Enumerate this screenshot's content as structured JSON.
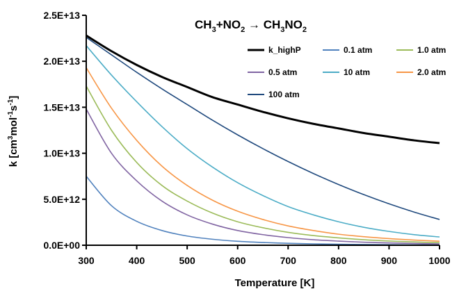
{
  "chart_data": {
    "type": "line",
    "title": "CH₃+NO₂ → CH₃NO₂",
    "title_parts": {
      "r1_base": "CH",
      "r1_sub": "3",
      "plus": "+NO",
      "r2_sub": "2",
      "arrow": " → ",
      "p_base": "CH",
      "p_sub1": "3",
      "p_mid": "NO",
      "p_sub2": "2"
    },
    "xlabel": "Temperature [K]",
    "ylabel": "k [cm³mol⁻¹s⁻¹]",
    "ylabel_parts": {
      "a": "k [cm",
      "sup1": "3",
      "b": "mol",
      "sup2": "-1",
      "c": "s",
      "sup3": "-1",
      "d": "]"
    },
    "xlim": [
      300,
      1000
    ],
    "ylim": [
      0,
      25000000000000.0
    ],
    "x_ticks": [
      300,
      400,
      500,
      600,
      700,
      800,
      900,
      1000
    ],
    "x_tick_labels": [
      "300",
      "400",
      "500",
      "600",
      "700",
      "800",
      "900",
      "1000"
    ],
    "y_ticks": [
      0,
      5000000000000.0,
      10000000000000.0,
      15000000000000.0,
      20000000000000.0,
      25000000000000.0
    ],
    "y_tick_labels": [
      "0.0E+00",
      "5.0E+12",
      "1.0E+13",
      "1.5E+13",
      "2.0E+13",
      "2.5E+13"
    ],
    "grid": false,
    "legend_position": "top-right",
    "x": [
      300,
      350,
      400,
      450,
      500,
      550,
      600,
      650,
      700,
      750,
      800,
      850,
      900,
      950,
      1000
    ],
    "series": [
      {
        "name": "k_highP",
        "color": "#000000",
        "width": 3,
        "values": [
          22800000000000.0,
          21100000000000.0,
          19600000000000.0,
          18300000000000.0,
          17200000000000.0,
          16100000000000.0,
          15300000000000.0,
          14500000000000.0,
          13800000000000.0,
          13200000000000.0,
          12700000000000.0,
          12200000000000.0,
          11800000000000.0,
          11400000000000.0,
          11100000000000.0
        ]
      },
      {
        "name": "0.1 atm",
        "color": "#4f81bd",
        "width": 1.6,
        "values": [
          7500000000000.0,
          4300000000000.0,
          2600000000000.0,
          1600000000000.0,
          1000000000000.0,
          650000000000.0,
          430000000000.0,
          300000000000.0,
          210000000000.0,
          150000000000.0,
          110000000000.0,
          80000000000.0,
          60000000000.0,
          45000000000.0,
          35000000000.0
        ]
      },
      {
        "name": "1.0 atm",
        "color": "#9bbb59",
        "width": 1.6,
        "values": [
          17300000000000.0,
          12500000000000.0,
          9000000000000.0,
          6500000000000.0,
          4800000000000.0,
          3500000000000.0,
          2550000000000.0,
          1900000000000.0,
          1400000000000.0,
          1050000000000.0,
          800000000000.0,
          600000000000.0,
          460000000000.0,
          360000000000.0,
          280000000000.0
        ]
      },
      {
        "name": "0.5 atm",
        "color": "#8064a2",
        "width": 1.6,
        "values": [
          14800000000000.0,
          10000000000000.0,
          7000000000000.0,
          4800000000000.0,
          3300000000000.0,
          2300000000000.0,
          1600000000000.0,
          1150000000000.0,
          830000000000.0,
          600000000000.0,
          450000000000.0,
          330000000000.0,
          250000000000.0,
          190000000000.0,
          150000000000.0
        ]
      },
      {
        "name": "10 atm",
        "color": "#4bacc6",
        "width": 1.6,
        "values": [
          21700000000000.0,
          18500000000000.0,
          15600000000000.0,
          12900000000000.0,
          10500000000000.0,
          8500000000000.0,
          6800000000000.0,
          5400000000000.0,
          4200000000000.0,
          3300000000000.0,
          2550000000000.0,
          1950000000000.0,
          1500000000000.0,
          1150000000000.0,
          900000000000.0
        ]
      },
      {
        "name": "2.0 atm",
        "color": "#f79646",
        "width": 1.6,
        "values": [
          19300000000000.0,
          14900000000000.0,
          11400000000000.0,
          8600000000000.0,
          6500000000000.0,
          4900000000000.0,
          3700000000000.0,
          2800000000000.0,
          2100000000000.0,
          1600000000000.0,
          1200000000000.0,
          930000000000.0,
          720000000000.0,
          560000000000.0,
          440000000000.0
        ]
      },
      {
        "name": "100 atm",
        "color": "#1f497d",
        "width": 1.6,
        "values": [
          22600000000000.0,
          20700000000000.0,
          18800000000000.0,
          17000000000000.0,
          15300000000000.0,
          13600000000000.0,
          12000000000000.0,
          10500000000000.0,
          9100000000000.0,
          7800000000000.0,
          6600000000000.0,
          5500000000000.0,
          4500000000000.0,
          3600000000000.0,
          2800000000000.0
        ]
      }
    ],
    "legend_order": [
      0,
      1,
      2,
      3,
      4,
      5,
      6
    ]
  }
}
